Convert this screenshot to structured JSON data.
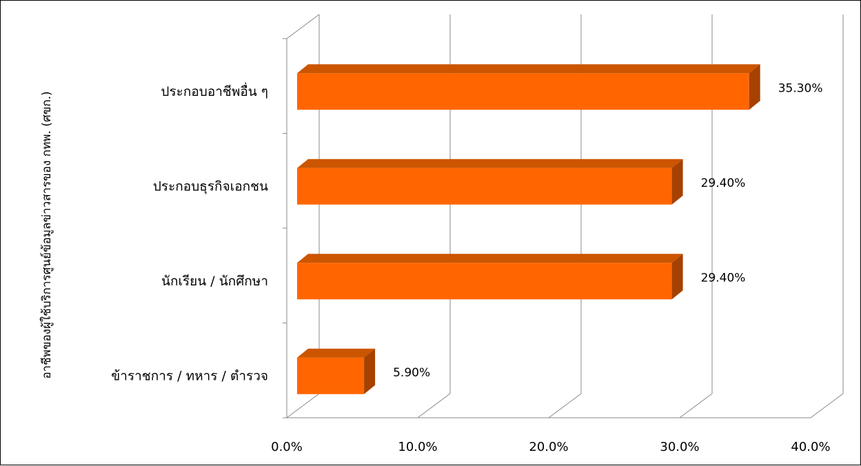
{
  "chart_data": {
    "type": "bar",
    "orientation": "horizontal",
    "three_d": true,
    "title": "",
    "xlabel": "",
    "ylabel": "อาชีพของผู้ใช้บริการศูนย์ข้อมูลข่าวสารของ กทพ. (ศขก.)",
    "categories": [
      "ข้าราชการ / ทหาร / ตำรวจ",
      "นักเรียน / นักศึกษา",
      "ประกอบธุรกิจเอกชน",
      "ประกอบอาชีพอื่น ๆ"
    ],
    "values": [
      5.9,
      29.4,
      29.4,
      35.3
    ],
    "data_labels": [
      "5.90%",
      "29.40%",
      "29.40%",
      "35.30%"
    ],
    "xlim": [
      0,
      40
    ],
    "x_ticks": [
      "0.0%",
      "10.0%",
      "20.0%",
      "30.0%",
      "40.0%"
    ],
    "grid": true,
    "legend": "none",
    "bar_color": "#ff6600",
    "bar_top_color": "#cc5500",
    "bar_side_color": "#a64100"
  }
}
